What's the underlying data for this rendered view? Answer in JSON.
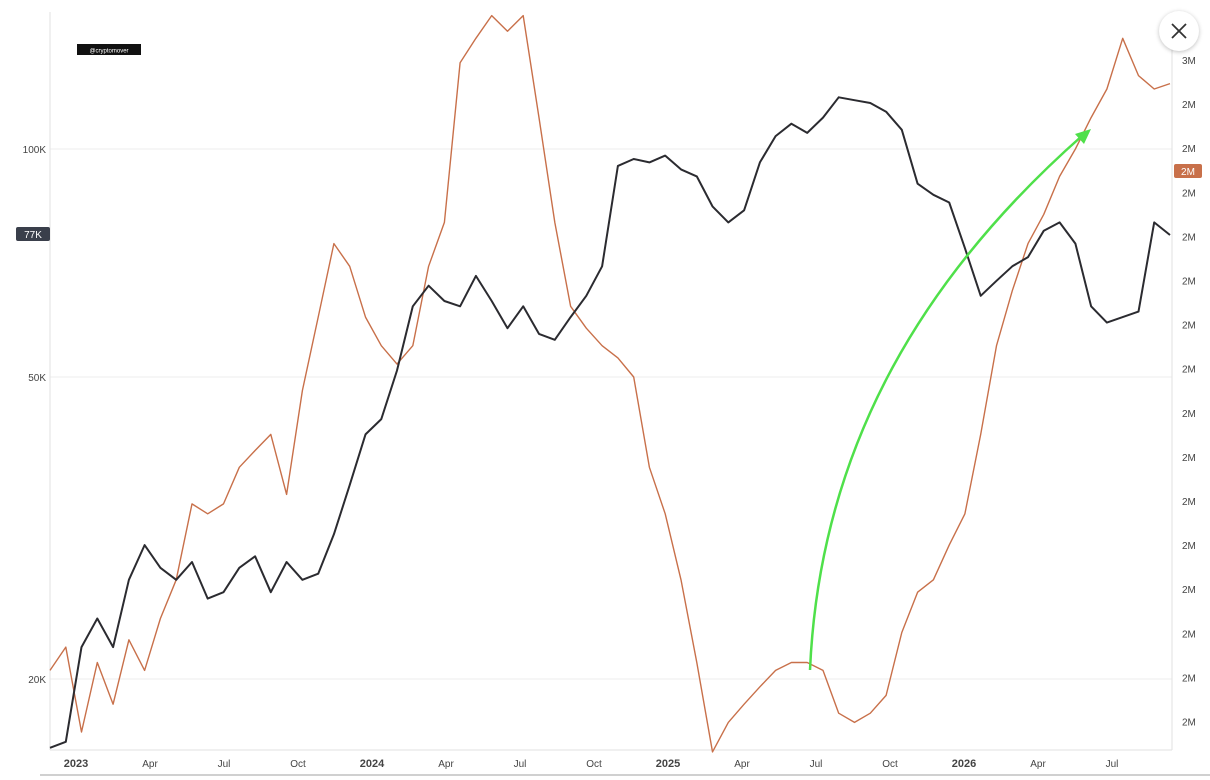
{
  "watermark": "@cryptomover",
  "close_icon": "close-icon",
  "colors": {
    "btc_line": "#2b2b30",
    "orange_line": "#c8704a",
    "arrow": "#4fe04a",
    "left_badge_bg": "#3a3f4b",
    "right_badge_bg": "#c8704a",
    "grid": "#ececec",
    "axis_text": "#444444"
  },
  "chart_data": {
    "type": "line",
    "x_ticks": [
      "2023",
      "Apr",
      "Jul",
      "Oct",
      "2024",
      "Apr",
      "Jul",
      "Oct",
      "2025",
      "Apr",
      "Jul",
      "Oct",
      "2026",
      "Apr",
      "Jul"
    ],
    "y_left": {
      "scale": "log",
      "ticks": [
        "100K",
        "50K",
        "20K"
      ],
      "range": [
        15000,
        190000
      ],
      "current_badge": "77K"
    },
    "y_right": {
      "ticks": [
        "3M",
        "2M",
        "2M",
        "2M",
        "2M",
        "2M",
        "2M",
        "2M",
        "2M",
        "2M",
        "2M",
        "2M",
        "2M",
        "2M",
        "2M",
        "2M"
      ],
      "current_badge": "2M"
    },
    "series": [
      {
        "id": "black",
        "points": [
          [
            0,
            16200
          ],
          [
            1,
            16500
          ],
          [
            2,
            22000
          ],
          [
            3,
            24000
          ],
          [
            4,
            22000
          ],
          [
            5,
            27000
          ],
          [
            6,
            30000
          ],
          [
            7,
            28000
          ],
          [
            8,
            27000
          ],
          [
            9,
            28500
          ],
          [
            10,
            25500
          ],
          [
            11,
            26000
          ],
          [
            12,
            28000
          ],
          [
            13,
            29000
          ],
          [
            14,
            26000
          ],
          [
            15,
            28500
          ],
          [
            16,
            27000
          ],
          [
            17,
            27500
          ],
          [
            18,
            31000
          ],
          [
            19,
            36000
          ],
          [
            20,
            42000
          ],
          [
            21,
            44000
          ],
          [
            22,
            51000
          ],
          [
            23,
            62000
          ],
          [
            24,
            66000
          ],
          [
            25,
            63000
          ],
          [
            26,
            62000
          ],
          [
            27,
            68000
          ],
          [
            28,
            63000
          ],
          [
            29,
            58000
          ],
          [
            30,
            62000
          ],
          [
            31,
            57000
          ],
          [
            32,
            56000
          ],
          [
            33,
            60000
          ],
          [
            34,
            64000
          ],
          [
            35,
            70000
          ],
          [
            36,
            95000
          ],
          [
            37,
            97000
          ],
          [
            38,
            96000
          ],
          [
            39,
            98000
          ],
          [
            40,
            94000
          ],
          [
            41,
            92000
          ],
          [
            42,
            84000
          ],
          [
            43,
            80000
          ],
          [
            44,
            83000
          ],
          [
            45,
            96000
          ],
          [
            46,
            104000
          ],
          [
            47,
            108000
          ],
          [
            48,
            105000
          ],
          [
            49,
            110000
          ],
          [
            50,
            117000
          ],
          [
            51,
            116000
          ],
          [
            52,
            115000
          ],
          [
            53,
            112000
          ],
          [
            54,
            106000
          ],
          [
            55,
            90000
          ],
          [
            56,
            87000
          ],
          [
            57,
            85000
          ],
          [
            58,
            74000
          ],
          [
            59,
            64000
          ],
          [
            60,
            67000
          ],
          [
            61,
            70000
          ],
          [
            62,
            72000
          ],
          [
            63,
            78000
          ],
          [
            64,
            80000
          ],
          [
            65,
            75000
          ],
          [
            66,
            62000
          ],
          [
            67,
            59000
          ],
          [
            68,
            60000
          ],
          [
            69,
            61000
          ],
          [
            70,
            80000
          ],
          [
            71,
            77000
          ]
        ]
      },
      {
        "id": "orange",
        "points": [
          [
            0,
            20500
          ],
          [
            1,
            22000
          ],
          [
            2,
            17000
          ],
          [
            3,
            21000
          ],
          [
            4,
            18500
          ],
          [
            5,
            22500
          ],
          [
            6,
            20500
          ],
          [
            7,
            24000
          ],
          [
            8,
            27000
          ],
          [
            9,
            34000
          ],
          [
            10,
            33000
          ],
          [
            11,
            34000
          ],
          [
            12,
            38000
          ],
          [
            13,
            40000
          ],
          [
            14,
            42000
          ],
          [
            15,
            35000
          ],
          [
            16,
            48000
          ],
          [
            17,
            60000
          ],
          [
            18,
            75000
          ],
          [
            19,
            70000
          ],
          [
            20,
            60000
          ],
          [
            21,
            55000
          ],
          [
            22,
            52000
          ],
          [
            23,
            55000
          ],
          [
            24,
            70000
          ],
          [
            25,
            80000
          ],
          [
            26,
            130000
          ],
          [
            27,
            140000
          ],
          [
            28,
            150000
          ],
          [
            29,
            143000
          ],
          [
            30,
            150000
          ],
          [
            31,
            110000
          ],
          [
            32,
            80000
          ],
          [
            33,
            62000
          ],
          [
            34,
            58000
          ],
          [
            35,
            55000
          ],
          [
            36,
            53000
          ],
          [
            37,
            50000
          ],
          [
            38,
            38000
          ],
          [
            39,
            33000
          ],
          [
            40,
            27000
          ],
          [
            41,
            21000
          ],
          [
            42,
            16000
          ],
          [
            43,
            17500
          ],
          [
            44,
            18500
          ],
          [
            45,
            19500
          ],
          [
            46,
            20500
          ],
          [
            47,
            21000
          ],
          [
            48,
            21000
          ],
          [
            49,
            20500
          ],
          [
            50,
            18000
          ],
          [
            51,
            17500
          ],
          [
            52,
            18000
          ],
          [
            53,
            19000
          ],
          [
            54,
            23000
          ],
          [
            55,
            26000
          ],
          [
            56,
            27000
          ],
          [
            57,
            30000
          ],
          [
            58,
            33000
          ],
          [
            59,
            42000
          ],
          [
            60,
            55000
          ],
          [
            61,
            65000
          ],
          [
            62,
            75000
          ],
          [
            63,
            82000
          ],
          [
            64,
            92000
          ],
          [
            65,
            100000
          ],
          [
            66,
            110000
          ],
          [
            67,
            120000
          ],
          [
            68,
            140000
          ],
          [
            69,
            125000
          ],
          [
            70,
            120000
          ],
          [
            71,
            122000
          ]
        ]
      }
    ]
  }
}
